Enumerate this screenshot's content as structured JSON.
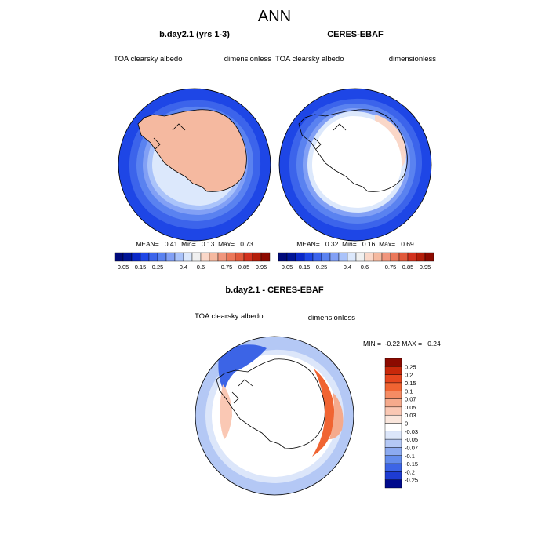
{
  "chart_data": {
    "type": "heatmap",
    "title": "ANN",
    "panels": [
      {
        "id": "model",
        "title": "b.day2.1 (yrs 1-3)",
        "variable": "TOA clearsky albedo",
        "units": "dimensionless",
        "stats_text": "MEAN=   0.41  Min=   0.13  Max=   0.73",
        "mean": 0.41,
        "min": 0.13,
        "max": 0.73,
        "projection": "south polar stereographic",
        "zones": [
          {
            "label": "open ocean rim",
            "value": 0.15
          },
          {
            "label": "outer ocean belt",
            "value": 0.2
          },
          {
            "label": "mid ocean belt",
            "value": 0.25
          },
          {
            "label": "inner ocean belt",
            "value": 0.3
          },
          {
            "label": "sea ice edge",
            "value": 0.4
          },
          {
            "label": "sea ice zone",
            "value": 0.5
          },
          {
            "label": "Antarctic continent",
            "value": 0.65
          }
        ]
      },
      {
        "id": "obs",
        "title": "CERES-EBAF",
        "variable": "TOA clearsky albedo",
        "units": "dimensionless",
        "stats_text": "MEAN=   0.32  Min=   0.16  Max=   0.69",
        "mean": 0.32,
        "min": 0.16,
        "max": 0.69,
        "projection": "south polar stereographic",
        "zones": [
          {
            "label": "open ocean rim",
            "value": 0.15
          },
          {
            "label": "outer ocean belt",
            "value": 0.2
          },
          {
            "label": "mid ocean belt",
            "value": 0.25
          },
          {
            "label": "inner ocean belt",
            "value": 0.3
          },
          {
            "label": "sea ice edge",
            "value": 0.4
          },
          {
            "label": "Antarctic continent",
            "value": "missing"
          }
        ]
      },
      {
        "id": "diff",
        "title": "b.day2.1 - CERES-EBAF",
        "variable": "TOA clearsky albedo",
        "units": "dimensionless",
        "stats_text": "MIN =  -0.22 MAX =   0.24",
        "min": -0.22,
        "max": 0.24,
        "projection": "south polar stereographic",
        "zones": [
          {
            "label": "outer ocean",
            "value": -0.07
          },
          {
            "label": "mid ocean",
            "value": -0.05
          },
          {
            "label": "inner ocean",
            "value": -0.03
          },
          {
            "label": "sea ice edge east",
            "value": 0.1
          },
          {
            "label": "Weddell Sea",
            "value": -0.15
          },
          {
            "label": "Antarctic continent",
            "value": "missing"
          }
        ]
      }
    ],
    "colorbar_abs": {
      "levels": [
        0.05,
        0.1,
        0.15,
        0.2,
        0.25,
        0.3,
        0.35,
        0.4,
        0.5,
        0.6,
        0.65,
        0.7,
        0.75,
        0.8,
        0.85,
        0.9,
        0.95
      ],
      "tick_labels": [
        "0.05",
        "0.15",
        "0.25",
        "0.4",
        "0.6",
        "0.75",
        "0.85",
        "0.95"
      ],
      "colors": [
        "#000a7a",
        "#001496",
        "#0a28c8",
        "#1e46e6",
        "#3c64eb",
        "#5a82f0",
        "#82a0f5",
        "#aac3fa",
        "#dce8fc",
        "#f0f0f0",
        "#fad7c8",
        "#f5b9a0",
        "#f0967d",
        "#eb785a",
        "#e15a3c",
        "#d2321e",
        "#b41e0a",
        "#8c0a00"
      ]
    },
    "colorbar_diff": {
      "levels": [
        -0.25,
        -0.2,
        -0.15,
        -0.1,
        -0.07,
        -0.05,
        -0.03,
        0,
        0.03,
        0.05,
        0.07,
        0.1,
        0.15,
        0.2,
        0.25
      ],
      "tick_labels": [
        "0.25",
        "0.2",
        "0.15",
        "0.1",
        "0.07",
        "0.05",
        "0.03",
        "0",
        "-0.03",
        "-0.05",
        "-0.07",
        "-0.1",
        "-0.15",
        "-0.2",
        "-0.25"
      ],
      "colors": [
        "#8c0a00",
        "#c8280a",
        "#e6461e",
        "#f06432",
        "#f58c64",
        "#f5aa8c",
        "#fac8b4",
        "#fae6dc",
        "#ffffff",
        "#dce6fa",
        "#b4c8f5",
        "#8caaf0",
        "#648cec",
        "#3c64e6",
        "#1e3cd2",
        "#000a8c"
      ]
    }
  }
}
